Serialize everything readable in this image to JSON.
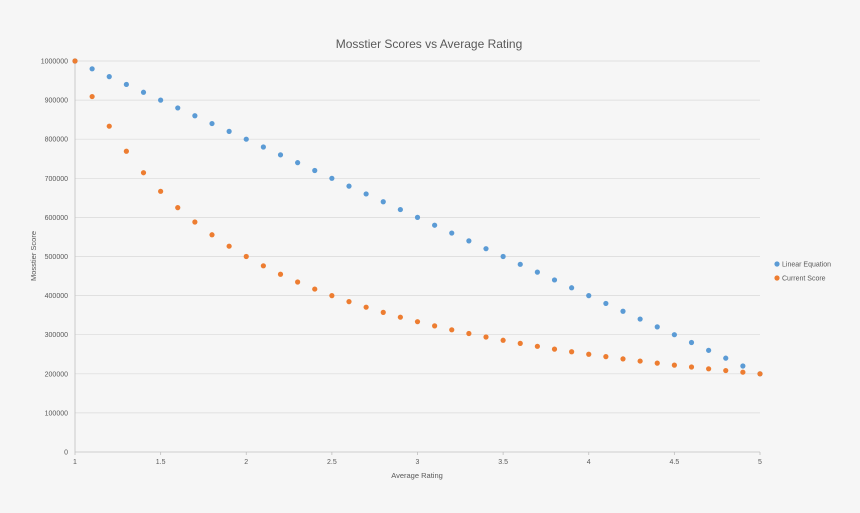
{
  "chart_data": {
    "type": "scatter",
    "title": "Mosstier Scores vs Average Rating",
    "xlabel": "Average Rating",
    "ylabel": "Mosstier Score",
    "xlim": [
      1,
      5
    ],
    "ylim": [
      0,
      1000000
    ],
    "x_ticks": [
      "1",
      "1.5",
      "2",
      "2.5",
      "3",
      "3.5",
      "4",
      "4.5",
      "5"
    ],
    "y_ticks": [
      "0",
      "100000",
      "200000",
      "300000",
      "400000",
      "500000",
      "600000",
      "700000",
      "800000",
      "900000",
      "1000000"
    ],
    "grid": "horizontal",
    "legend_position": "right",
    "x": [
      1.0,
      1.1,
      1.2,
      1.3,
      1.4,
      1.5,
      1.6,
      1.7,
      1.8,
      1.9,
      2.0,
      2.1,
      2.2,
      2.3,
      2.4,
      2.5,
      2.6,
      2.7,
      2.8,
      2.9,
      3.0,
      3.1,
      3.2,
      3.3,
      3.4,
      3.5,
      3.6,
      3.7,
      3.8,
      3.9,
      4.0,
      4.1,
      4.2,
      4.3,
      4.4,
      4.5,
      4.6,
      4.7,
      4.8,
      4.9,
      5.0
    ],
    "series": [
      {
        "name": "Linear Equation",
        "color": "#5b9bd5",
        "values": [
          1000000,
          980000,
          960000,
          940000,
          920000,
          900000,
          880000,
          860000,
          840000,
          820000,
          800000,
          780000,
          760000,
          740000,
          720000,
          700000,
          680000,
          660000,
          640000,
          620000,
          600000,
          580000,
          560000,
          540000,
          520000,
          500000,
          480000,
          460000,
          440000,
          420000,
          400000,
          380000,
          360000,
          340000,
          320000,
          300000,
          280000,
          260000,
          240000,
          220000,
          200000
        ]
      },
      {
        "name": "Current Score",
        "color": "#ed7d31",
        "values": [
          1000000,
          909091,
          833333,
          769231,
          714286,
          666667,
          625000,
          588235,
          555556,
          526316,
          500000,
          476190,
          454545,
          434783,
          416667,
          400000,
          384615,
          370370,
          357143,
          344828,
          333333,
          322581,
          312500,
          303030,
          294118,
          285714,
          277778,
          270270,
          263158,
          256410,
          250000,
          243902,
          238095,
          232558,
          227273,
          222222,
          217391,
          212766,
          208333,
          204082,
          200000
        ]
      }
    ]
  }
}
